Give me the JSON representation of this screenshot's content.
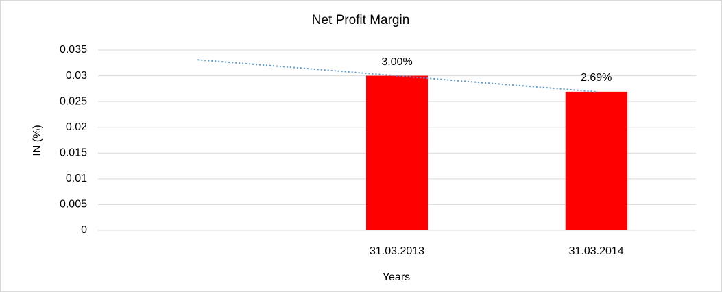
{
  "chart_data": {
    "type": "bar",
    "title": "Net Profit Margin",
    "x_label": "Years",
    "y_label": "IN (%)",
    "categories": [
      null,
      "31.03.2013",
      "31.03.2014"
    ],
    "values": [
      null,
      0.03,
      0.0269
    ],
    "value_labels": [
      null,
      "3.00%",
      "2.69%"
    ],
    "color": "#ff0000",
    "trendline": {
      "color": "#5b9bd5",
      "values": [
        0.0331,
        0.03,
        0.0269
      ]
    },
    "ylim": [
      0,
      0.035
    ],
    "yticks": [
      0,
      0.005,
      0.01,
      0.015,
      0.02,
      0.025,
      0.03,
      0.035
    ],
    "grid": true
  }
}
